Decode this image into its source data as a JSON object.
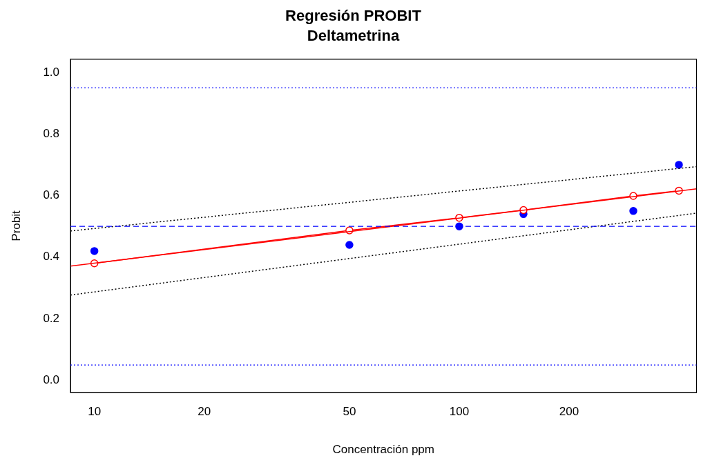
{
  "chart_data": {
    "type": "scatter",
    "title": "Regresión PROBIT",
    "subtitle": "Deltametrina",
    "xlabel": "Concentración ppm",
    "ylabel": "Probit",
    "log": "x",
    "xlim": [
      8.6,
      447
    ],
    "xticks": [
      10,
      20,
      50,
      100,
      200
    ],
    "ylim": [
      -0.04,
      1.043
    ],
    "yticks": [
      {
        "value": 0,
        "label": "0.0"
      },
      {
        "value": 0.2,
        "label": "0.2"
      },
      {
        "value": 0.4,
        "label": "0.4"
      },
      {
        "value": 0.6,
        "label": "0.6"
      },
      {
        "value": 0.8,
        "label": "0.8"
      },
      {
        "value": 1,
        "label": "1.0"
      }
    ],
    "grid": false,
    "legend": false,
    "series": [
      {
        "type": "line",
        "color": "#000000",
        "line_style": "dotted",
        "marker": "none",
        "x": [
          8.6,
          447
        ],
        "values": [
          0.485,
          0.694
        ]
      },
      {
        "type": "line",
        "color": "#000000",
        "line_style": "dotted",
        "marker": "none",
        "x": [
          8.6,
          447
        ],
        "values": [
          0.277,
          0.543
        ]
      },
      {
        "type": "line",
        "color": "#ff0000",
        "line_style": "solid",
        "marker": "none",
        "x": [
          8.6,
          447
        ],
        "values": [
          0.371,
          0.622
        ]
      },
      {
        "type": "line",
        "color": "#ff0000",
        "line_style": "solid",
        "marker": "circle",
        "x": [
          10,
          50,
          100,
          150,
          300,
          400
        ],
        "values": [
          0.38,
          0.487,
          0.528,
          0.553,
          0.599,
          0.616
        ]
      },
      {
        "color": "#0000ff",
        "marker": "circle",
        "x": [
          10,
          50,
          100,
          150,
          300,
          400
        ],
        "values": [
          0.42,
          0.44,
          0.5,
          0.54,
          0.55,
          0.7
        ]
      }
    ],
    "ref_lines": [
      {
        "axis": "y",
        "value": 0.95,
        "color": "#0000ff",
        "line_style": "dotted"
      },
      {
        "axis": "y",
        "value": 0.5,
        "color": "#0000ff",
        "line_style": "dashed"
      },
      {
        "axis": "y",
        "value": 0.05,
        "color": "#0000ff",
        "line_style": "dotted"
      }
    ]
  }
}
